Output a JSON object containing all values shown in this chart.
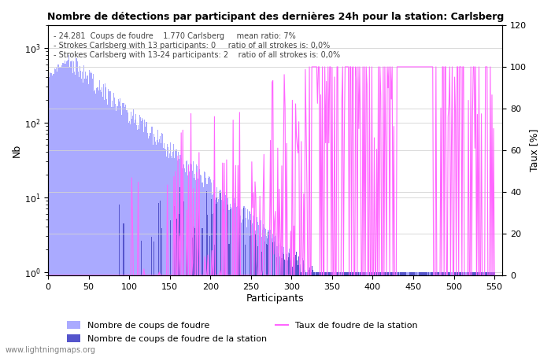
{
  "title": "Nombre de détections par participant des dernières 24h pour la station: Carlsberg",
  "xlabel": "Participants",
  "ylabel_left": "Nb",
  "ylabel_right": "Taux [%]",
  "annotation_lines": [
    "- 24.281  Coups de foudre    1.770 Carlsberg     mean ratio: 7%",
    "- Strokes Carlsberg with 13 participants: 0     ratio of all strokes is: 0,0%",
    "- Strokes Carlsberg with 13-24 participants: 2    ratio of all strokes is: 0,0%"
  ],
  "legend_label_light": "Nombre de coups de foudre",
  "legend_label_dark": "Nombre de coups de foudre de la station",
  "legend_label_line": "Taux de foudre de la station",
  "bar_color_light": "#aaaaff",
  "bar_color_dark": "#5555cc",
  "line_color": "#ff66ff",
  "watermark": "www.lightningmaps.org",
  "xlim_max": 560,
  "n_participants": 550,
  "seed": 42
}
